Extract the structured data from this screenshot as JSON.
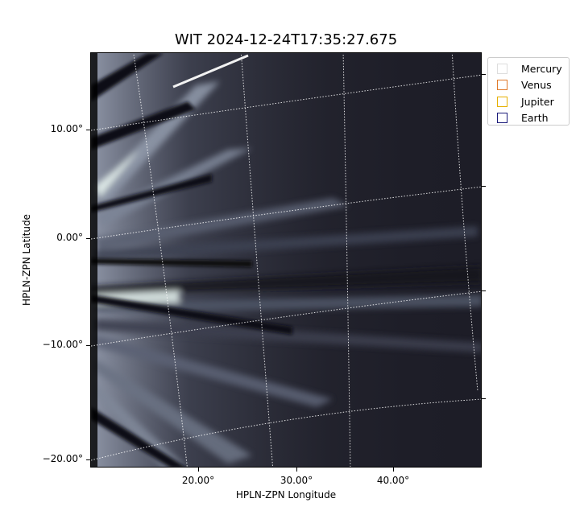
{
  "figure": {
    "title": "WIT 2024-12-24T17:35:27.675",
    "xlabel": "HPLN-ZPN Longitude",
    "ylabel": "HPLN-ZPN Latitude",
    "yticks": [
      "10.00°",
      "0.00°",
      "−10.00°",
      "−20.00°"
    ],
    "xticks": [
      "20.00°",
      "30.00°",
      "40.00°"
    ]
  },
  "legend": {
    "items": [
      {
        "label": "Mercury",
        "color": "#dddddd"
      },
      {
        "label": "Venus",
        "color": "#e07a2a"
      },
      {
        "label": "Jupiter",
        "color": "#e6b000"
      },
      {
        "label": "Earth",
        "color": "#1a1a7a"
      }
    ]
  },
  "image": {
    "colormap": "bone",
    "grid": "dotted white"
  }
}
